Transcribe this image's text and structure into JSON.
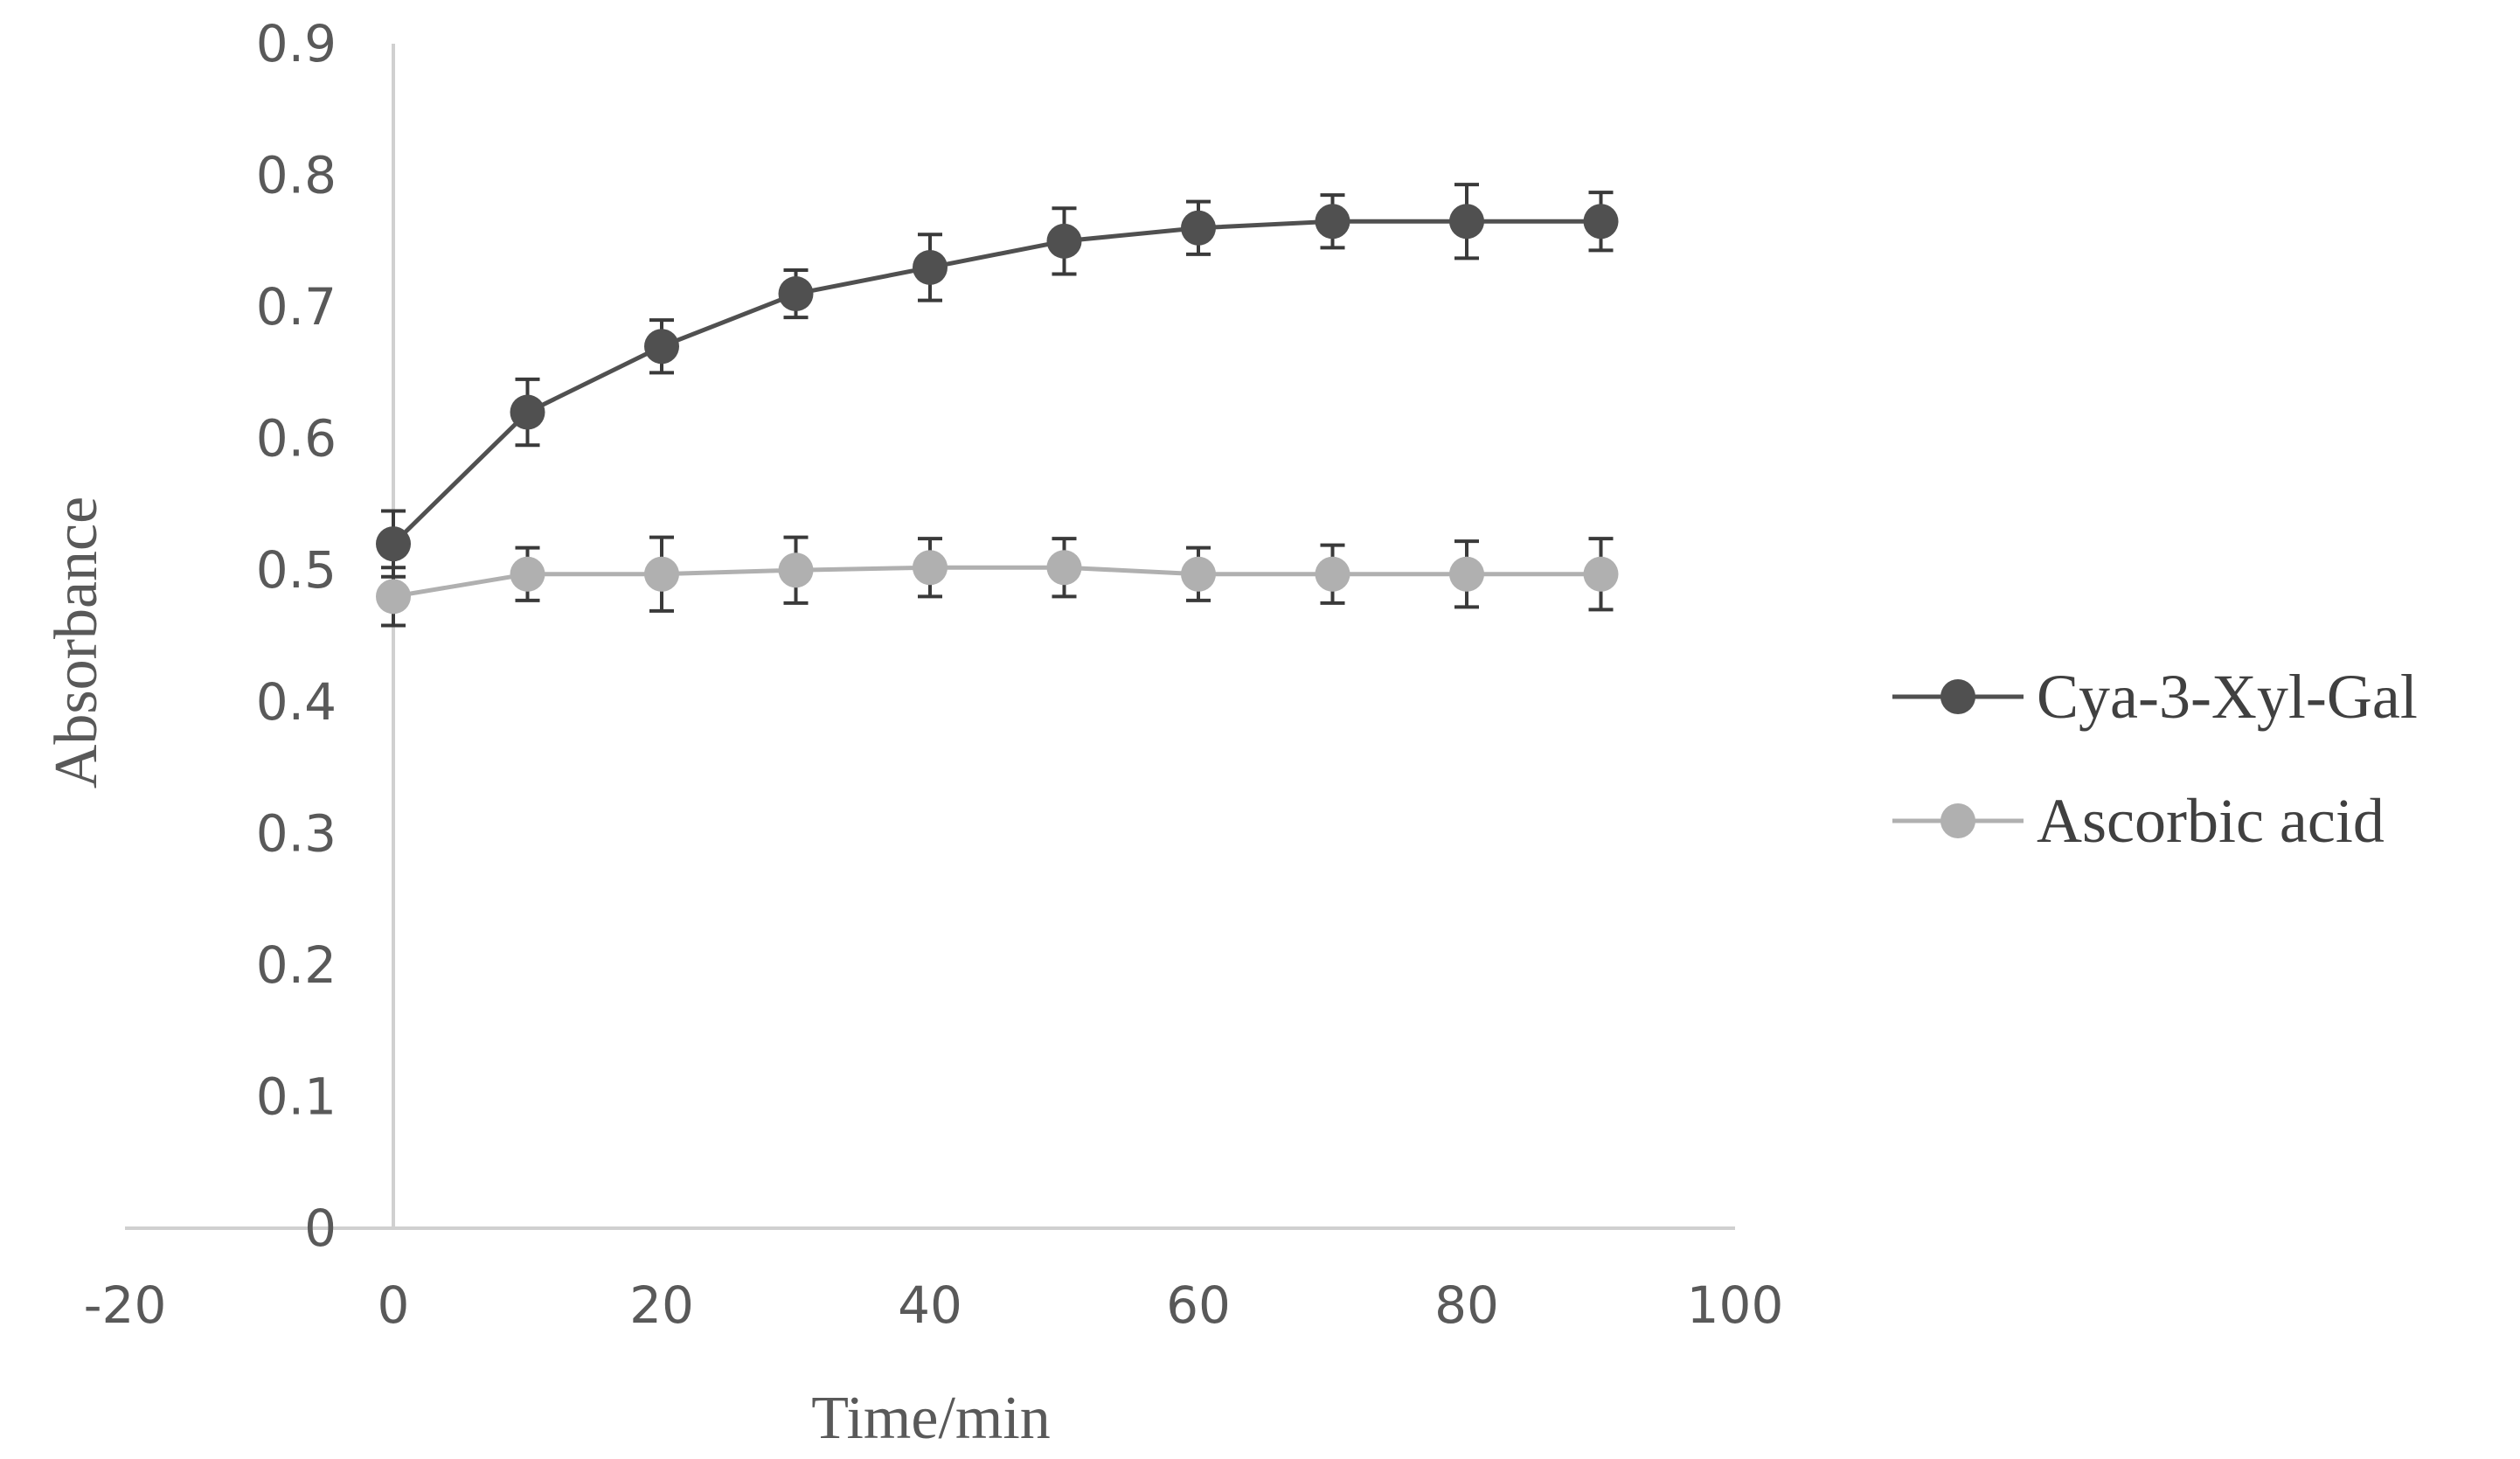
{
  "chart_data": {
    "type": "line",
    "xlabel": "Time/min",
    "ylabel": "Absorbance",
    "xlim": [
      -20,
      100
    ],
    "ylim": [
      0,
      0.9
    ],
    "x_ticks": [
      "-20",
      "0",
      "20",
      "40",
      "60",
      "80",
      "100"
    ],
    "y_ticks": [
      "0",
      "0.1",
      "0.2",
      "0.3",
      "0.4",
      "0.5",
      "0.6",
      "0.7",
      "0.8",
      "0.9"
    ],
    "x": [
      0,
      10,
      20,
      30,
      40,
      50,
      60,
      70,
      80,
      90
    ],
    "grid": false,
    "legend_position": "right",
    "series": [
      {
        "name": "Cya-3-Xyl-Gal",
        "color": "#505050",
        "values": [
          0.52,
          0.62,
          0.67,
          0.71,
          0.73,
          0.75,
          0.76,
          0.765,
          0.765,
          0.765
        ],
        "errors": [
          0.025,
          0.025,
          0.02,
          0.018,
          0.025,
          0.025,
          0.02,
          0.02,
          0.028,
          0.022
        ]
      },
      {
        "name": "Ascorbic acid",
        "color": "#b0b0b0",
        "values": [
          0.48,
          0.497,
          0.497,
          0.5,
          0.502,
          0.502,
          0.497,
          0.497,
          0.497,
          0.497
        ],
        "errors": [
          0.022,
          0.02,
          0.028,
          0.025,
          0.022,
          0.022,
          0.02,
          0.022,
          0.025,
          0.027
        ]
      }
    ]
  }
}
